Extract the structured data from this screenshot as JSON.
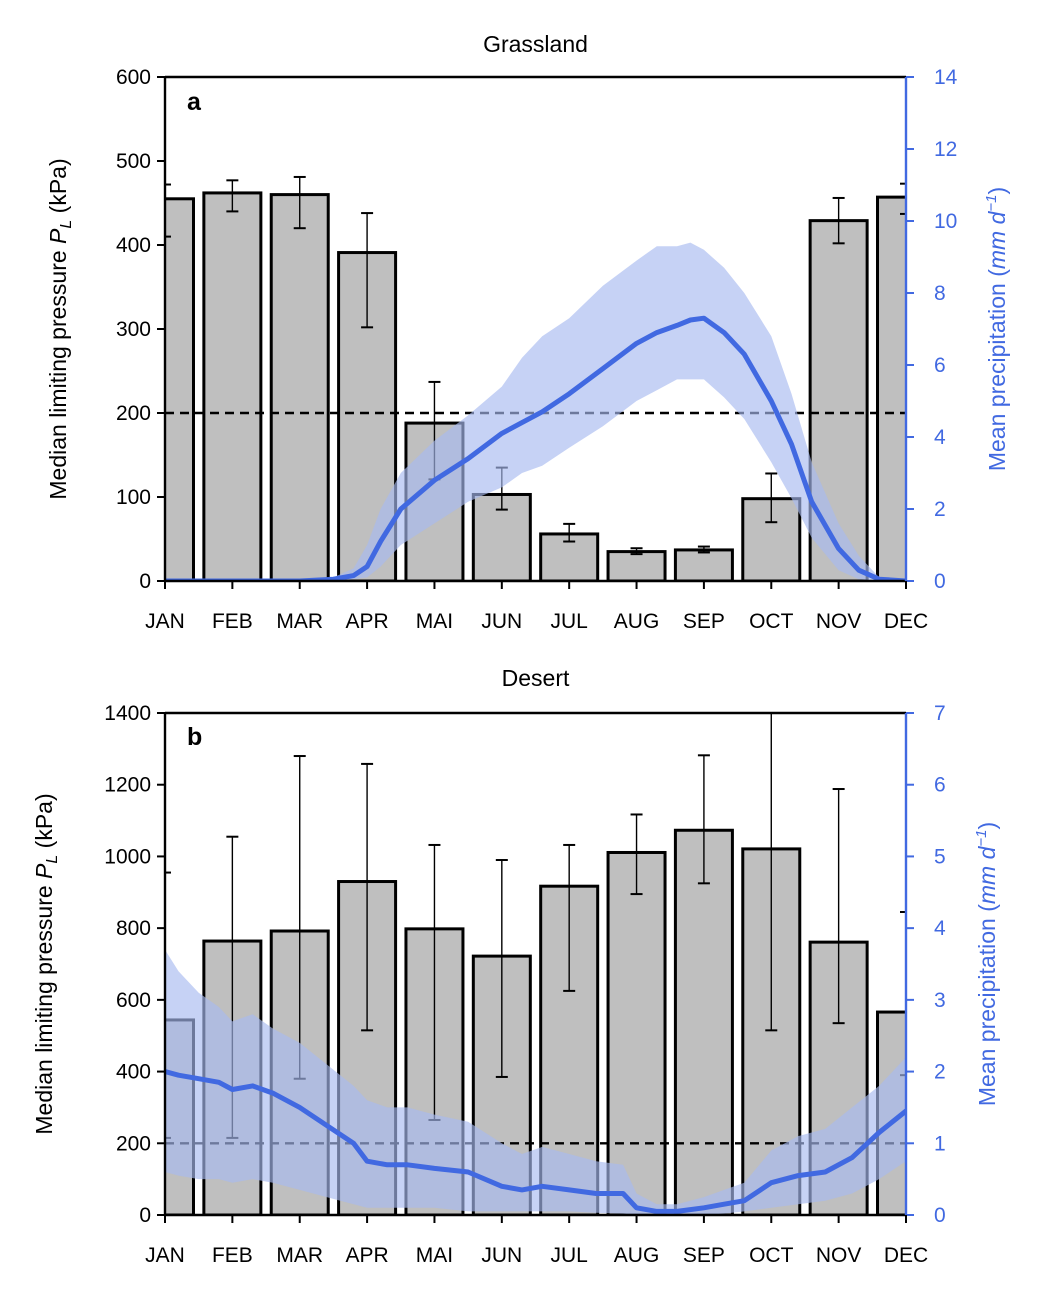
{
  "colors": {
    "bar_fill": "#bfbfbf",
    "bar_edge": "#000000",
    "precip_line": "#4169e1",
    "precip_band": "#a8baf0",
    "right_axis": "#4169e1"
  },
  "chart_data": [
    {
      "type": "bar",
      "panel": "a",
      "title": "Grassland",
      "ylabel": "Median limiting pressure P_L (kPa)",
      "ylabel_parts": {
        "main": "Median limiting pressure ",
        "sym": "P",
        "sub": "L",
        "unit": " (kPa)"
      },
      "y2label": "Mean precipitation (mm d⁻¹)",
      "y2label_parts": {
        "main": "Mean precipitation (",
        "unit": "mm d",
        "sup": "−1",
        "close": ")"
      },
      "ylim": [
        0,
        600
      ],
      "yticks": [
        0,
        100,
        200,
        300,
        400,
        500,
        600
      ],
      "y2lim": [
        0,
        14
      ],
      "y2ticks": [
        0,
        2,
        4,
        6,
        8,
        10,
        12,
        14
      ],
      "threshold": 200,
      "categories": [
        "JAN",
        "FEB",
        "MAR",
        "APR",
        "MAI",
        "JUN",
        "JUL",
        "AUG",
        "SEP",
        "OCT",
        "NOV",
        "DEC"
      ],
      "values": [
        455,
        462,
        460,
        391,
        188,
        103,
        56,
        35,
        37,
        98,
        429,
        457
      ],
      "err_low": [
        410,
        440,
        420,
        302,
        121,
        85,
        47,
        32,
        34,
        70,
        402,
        437
      ],
      "err_high": [
        472,
        477,
        481,
        438,
        237,
        135,
        68,
        39,
        41,
        128,
        456,
        473
      ],
      "precip_x": [
        0,
        1,
        2,
        2.5,
        2.8,
        3,
        3.2,
        3.5,
        4,
        4.5,
        5,
        5.3,
        5.6,
        6,
        6.5,
        7,
        7.3,
        7.6,
        7.8,
        8,
        8.3,
        8.6,
        9,
        9.3,
        9.6,
        10,
        10.3,
        10.6,
        11
      ],
      "precip": [
        0,
        0,
        0,
        0.05,
        0.15,
        0.4,
        1.1,
        2.0,
        2.8,
        3.4,
        4.1,
        4.4,
        4.7,
        5.2,
        5.9,
        6.6,
        6.9,
        7.1,
        7.25,
        7.3,
        6.9,
        6.3,
        5.0,
        3.8,
        2.2,
        0.9,
        0.3,
        0.05,
        0
      ],
      "precip_lo": [
        0,
        0,
        0,
        0,
        0.05,
        0.1,
        0.4,
        1.0,
        1.6,
        2.2,
        2.6,
        3.0,
        3.2,
        3.7,
        4.3,
        5.0,
        5.3,
        5.6,
        5.6,
        5.6,
        5.1,
        4.5,
        3.3,
        2.3,
        1.2,
        0.3,
        0.05,
        0,
        0
      ],
      "precip_hi": [
        0,
        0,
        0,
        0.1,
        0.35,
        1.0,
        2.0,
        3.0,
        3.9,
        4.6,
        5.4,
        6.2,
        6.8,
        7.3,
        8.2,
        8.9,
        9.3,
        9.3,
        9.4,
        9.2,
        8.7,
        8.0,
        6.8,
        5.2,
        3.3,
        1.6,
        0.7,
        0.1,
        0
      ]
    },
    {
      "type": "bar",
      "panel": "b",
      "title": "Desert",
      "ylabel": "Median limiting pressure P_L (kPa)",
      "ylabel_parts": {
        "main": "Median limiting pressure ",
        "sym": "P",
        "sub": "L",
        "unit": " (kPa)"
      },
      "y2label": "Mean precipitation (mm d⁻¹)",
      "y2label_parts": {
        "main": "Mean precipitation (",
        "unit": "mm d",
        "sup": "−1",
        "close": ")"
      },
      "ylim": [
        0,
        1400
      ],
      "yticks": [
        0,
        200,
        400,
        600,
        800,
        1000,
        1200,
        1400
      ],
      "y2lim": [
        0,
        7
      ],
      "y2ticks": [
        0,
        1,
        2,
        3,
        4,
        5,
        6,
        7
      ],
      "threshold": 200,
      "categories": [
        "JAN",
        "FEB",
        "MAR",
        "APR",
        "MAI",
        "JUN",
        "JUL",
        "AUG",
        "SEP",
        "OCT",
        "NOV",
        "DEC"
      ],
      "values": [
        544,
        764,
        792,
        930,
        798,
        722,
        917,
        1011,
        1073,
        1021,
        761,
        566
      ],
      "err_low": [
        215,
        215,
        380,
        515,
        265,
        385,
        625,
        895,
        925,
        515,
        535,
        390
      ],
      "err_high": [
        955,
        1055,
        1280,
        1258,
        1032,
        990,
        1032,
        1117,
        1282,
        1400,
        1188,
        845
      ],
      "precip_x": [
        0,
        0.2,
        0.5,
        0.8,
        1,
        1.3,
        1.6,
        2,
        2.4,
        2.8,
        3,
        3.3,
        3.6,
        4,
        4.5,
        5,
        5.3,
        5.6,
        6,
        6.4,
        6.8,
        7,
        7.3,
        7.6,
        8,
        8.3,
        8.6,
        9,
        9.4,
        9.8,
        10.2,
        10.6,
        11
      ],
      "precip": [
        2.0,
        1.95,
        1.9,
        1.85,
        1.75,
        1.8,
        1.7,
        1.5,
        1.25,
        1.0,
        0.75,
        0.7,
        0.7,
        0.65,
        0.6,
        0.4,
        0.35,
        0.4,
        0.35,
        0.3,
        0.3,
        0.1,
        0.05,
        0.05,
        0.1,
        0.15,
        0.2,
        0.45,
        0.55,
        0.6,
        0.8,
        1.15,
        1.45
      ],
      "precip_lo": [
        0.6,
        0.55,
        0.5,
        0.5,
        0.45,
        0.5,
        0.45,
        0.35,
        0.25,
        0.15,
        0.1,
        0.1,
        0.1,
        0.1,
        0.05,
        0.05,
        0.05,
        0.05,
        0.05,
        0.03,
        0.02,
        0,
        0,
        0,
        0,
        0.02,
        0.05,
        0.1,
        0.15,
        0.2,
        0.3,
        0.5,
        0.75
      ],
      "precip_hi": [
        3.7,
        3.4,
        3.1,
        2.9,
        2.7,
        2.8,
        2.6,
        2.4,
        2.1,
        1.8,
        1.6,
        1.5,
        1.5,
        1.4,
        1.3,
        1.0,
        0.85,
        0.95,
        0.85,
        0.75,
        0.7,
        0.3,
        0.15,
        0.15,
        0.25,
        0.35,
        0.45,
        0.9,
        1.1,
        1.2,
        1.5,
        1.8,
        2.2
      ]
    }
  ]
}
